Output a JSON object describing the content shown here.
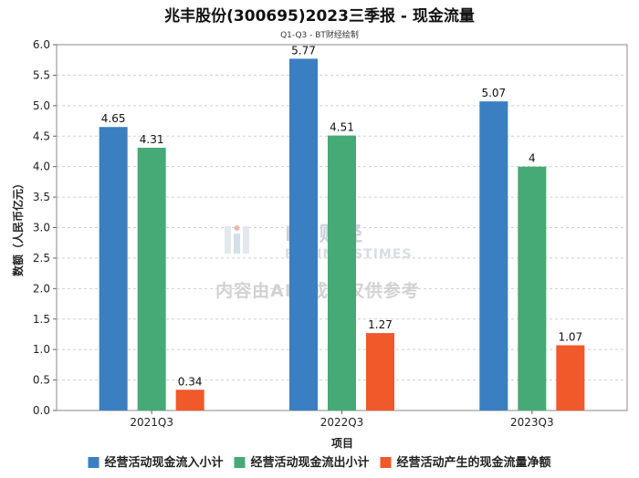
{
  "chart_data": {
    "type": "bar",
    "title": "兆丰股份(300695)2023三季报 - 现金流量",
    "subtitle": "Q1-Q3 - BT财经绘制",
    "xlabel": "项目",
    "ylabel": "数额（人民币亿元）",
    "ylim": [
      0,
      6.0
    ],
    "yticks": [
      "0.0",
      "0.5",
      "1.0",
      "1.5",
      "2.0",
      "2.5",
      "3.0",
      "3.5",
      "4.0",
      "4.5",
      "5.0",
      "5.5",
      "6.0"
    ],
    "grid": true,
    "legend_position": "bottom",
    "categories": [
      "2021Q3",
      "2022Q3",
      "2023Q3"
    ],
    "series": [
      {
        "name": "经营活动现金流入小计",
        "color": "#3a7fc1",
        "values": [
          4.65,
          5.77,
          5.07
        ],
        "labels": [
          "4.65",
          "5.77",
          "5.07"
        ]
      },
      {
        "name": "经营活动现金流出小计",
        "color": "#45aa75",
        "values": [
          4.31,
          4.51,
          4.0
        ],
        "labels": [
          "4.31",
          "4.51",
          "4"
        ]
      },
      {
        "name": "经营活动产生的现金流量净额",
        "color": "#f0592a",
        "values": [
          0.34,
          1.27,
          1.07
        ],
        "labels": [
          "0.34",
          "1.27",
          "1.07"
        ]
      }
    ]
  },
  "watermark": {
    "brand": "BT财经",
    "brand_en": "BUSINESSTIMES",
    "note": "内容由AI生成，仅供参考"
  }
}
